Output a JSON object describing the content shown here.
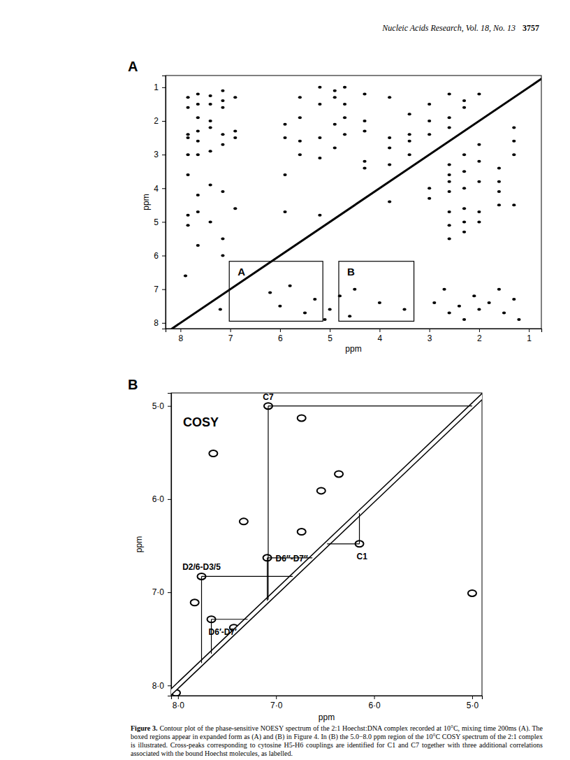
{
  "header": {
    "journal": "Nucleic Acids Research, Vol. 18, No. 13",
    "page": "3757"
  },
  "chart_data": [
    {
      "panel": "A",
      "type": "scatter",
      "xlabel": "ppm",
      "ylabel": "ppm",
      "xlim": [
        8.3,
        0.75
      ],
      "ylim": [
        0.65,
        8.17
      ],
      "xticks": [
        8,
        7,
        6,
        5,
        4,
        3,
        2,
        1
      ],
      "yticks": [
        1,
        2,
        3,
        4,
        5,
        6,
        7,
        8
      ],
      "series": [
        {
          "type": "scatter",
          "color": "black",
          "x": [
            7.85,
            7.85,
            7.85,
            7.85,
            7.85,
            7.85,
            7.85,
            7.85,
            7.65,
            7.65,
            7.65,
            7.65,
            7.65,
            7.65,
            7.65,
            7.65,
            7.65,
            7.4,
            7.4,
            7.4,
            7.4,
            7.4,
            7.4,
            7.4,
            7.15,
            7.15,
            7.15,
            7.15,
            7.15,
            7.15,
            7.15,
            7.15,
            6.9,
            6.9,
            6.9,
            6.9,
            5.9,
            5.9,
            5.9,
            5.9,
            5.6,
            5.6,
            5.6,
            5.6,
            5.2,
            5.2,
            5.2,
            5.2,
            5.2,
            4.9,
            4.9,
            4.9,
            4.9,
            4.7,
            4.7,
            4.7,
            4.7,
            4.3,
            4.3,
            4.3,
            4.3,
            4.3,
            3.8,
            3.8,
            3.8,
            3.8,
            3.8,
            3.4,
            3.4,
            3.4,
            3.4,
            3.0,
            3.0,
            3.0,
            3.0,
            3.0,
            2.6,
            2.6,
            2.6,
            2.6,
            2.6,
            2.6,
            2.6,
            2.6,
            2.6,
            2.6,
            2.3,
            2.3,
            2.3,
            2.3,
            2.3,
            2.3,
            2.3,
            2.3,
            2.0,
            2.0,
            2.0,
            2.0,
            2.0,
            2.0,
            1.6,
            1.6,
            1.6,
            1.6,
            1.3,
            1.3,
            1.3,
            1.3,
            6.2,
            6.0,
            5.8,
            5.5,
            5.3,
            5.1,
            5.0,
            4.8,
            4.6,
            4.5,
            2.9,
            2.7,
            2.6,
            2.4,
            2.3,
            2.1,
            2.0,
            1.8,
            1.6,
            1.5,
            1.3,
            1.2,
            4.0,
            3.5,
            7.9,
            7.2
          ],
          "values": [
            1.3,
            1.6,
            2.4,
            2.5,
            3.0,
            3.6,
            4.8,
            5.1,
            1.2,
            1.5,
            1.9,
            2.3,
            2.6,
            3.0,
            4.2,
            4.7,
            5.7,
            1.25,
            1.5,
            2.0,
            2.2,
            2.9,
            3.9,
            5.0,
            1.1,
            1.4,
            1.6,
            2.4,
            2.7,
            4.1,
            5.5,
            6.0,
            1.3,
            2.3,
            2.5,
            4.6,
            2.1,
            2.5,
            3.6,
            4.7,
            1.3,
            1.9,
            2.6,
            3.0,
            1.0,
            1.5,
            2.5,
            3.1,
            4.8,
            1.1,
            1.3,
            2.1,
            2.8,
            1.0,
            1.5,
            1.9,
            2.4,
            1.2,
            2.0,
            2.3,
            3.2,
            3.4,
            1.3,
            2.5,
            2.8,
            3.3,
            4.4,
            1.8,
            2.4,
            2.6,
            3.0,
            1.5,
            2.0,
            2.4,
            4.0,
            4.3,
            1.2,
            1.9,
            2.2,
            3.3,
            3.6,
            3.8,
            4.1,
            4.7,
            5.1,
            5.5,
            1.4,
            1.6,
            3.0,
            3.5,
            4.0,
            4.6,
            5.0,
            5.3,
            1.2,
            2.7,
            3.2,
            3.8,
            4.7,
            5.0,
            3.4,
            3.8,
            4.1,
            4.5,
            2.2,
            2.6,
            3.0,
            4.5,
            7.1,
            7.5,
            6.9,
            7.7,
            7.3,
            7.9,
            7.6,
            7.2,
            7.8,
            7.0,
            7.4,
            7.0,
            7.7,
            7.5,
            7.9,
            7.2,
            7.6,
            7.4,
            7.0,
            7.7,
            7.3,
            7.9,
            7.4,
            7.6,
            6.6,
            7.6
          ]
        },
        {
          "type": "line",
          "color": "black",
          "x": [
            8.17,
            0.75
          ],
          "values": [
            8.17,
            0.75
          ]
        }
      ],
      "annotations": [
        {
          "text": "A",
          "x": [
            7.02,
            5.14
          ],
          "y": [
            6.17,
            7.95
          ]
        },
        {
          "text": "B",
          "x": [
            4.82,
            3.31
          ],
          "y": [
            6.17,
            7.95
          ]
        }
      ]
    },
    {
      "panel": "B",
      "type": "scatter",
      "title": "COSY",
      "xlabel": "ppm",
      "ylabel": "ppm",
      "xlim": [
        8.07,
        4.9
      ],
      "ylim": [
        4.86,
        8.11
      ],
      "xticks": [
        {
          "value": 8,
          "label": "8·0"
        },
        {
          "value": 7,
          "label": "7·0"
        },
        {
          "value": 6,
          "label": "6·0"
        },
        {
          "value": 5,
          "label": "5·0"
        }
      ],
      "yticks": [
        {
          "value": 5,
          "label": "5·0"
        },
        {
          "value": 6,
          "label": "6·0"
        },
        {
          "value": 7,
          "label": "7·0"
        },
        {
          "value": 8,
          "label": "8·0"
        }
      ],
      "series": [
        {
          "type": "scatter",
          "color": "black",
          "x": [
            7.08,
            5.0,
            6.15,
            7.76,
            7.09,
            7.66,
            7.64,
            7.33,
            6.74,
            6.54,
            6.36,
            7.83,
            7.43,
            6.74,
            8.02
          ],
          "values": [
            5.0,
            7.01,
            6.48,
            6.83,
            6.63,
            7.29,
            5.51,
            6.24,
            6.35,
            5.91,
            5.73,
            7.11,
            7.38,
            5.13,
            8.08
          ]
        },
        {
          "type": "line",
          "color": "black",
          "x": [
            8.11,
            4.86
          ],
          "values": [
            8.11,
            4.86
          ]
        }
      ],
      "annotations": [
        {
          "text": "C7",
          "x": 7.08,
          "y": 5.0
        },
        {
          "text": "C1",
          "x": 6.15,
          "y": 6.48
        },
        {
          "text": "D2/6-D3/5",
          "x": 7.76,
          "y": 6.83
        },
        {
          "text": "D6″-D7″",
          "x": 7.09,
          "y": 6.63
        },
        {
          "text": "D6′-D7′",
          "x": 7.66,
          "y": 7.29
        }
      ]
    }
  ],
  "caption": {
    "label": "Figure 3.",
    "text": "Contour plot of the phase-sensitive NOESY spectrum of the 2:1 Hoechst:DNA complex recorded at 10°C, mixing time 200ms (A). The boxed regions appear in expanded form as (A) and (B) in Figure 4. In (B) the 5.0−8.0 ppm region of the 10°C COSY spectrum of the 2:1 complex is illustrated. Cross-peaks corresponding to cytosine H5-H6 couplings are identified for C1 and C7 together with three additional correlations associated with the bound Hoechst molecules, as labelled."
  }
}
